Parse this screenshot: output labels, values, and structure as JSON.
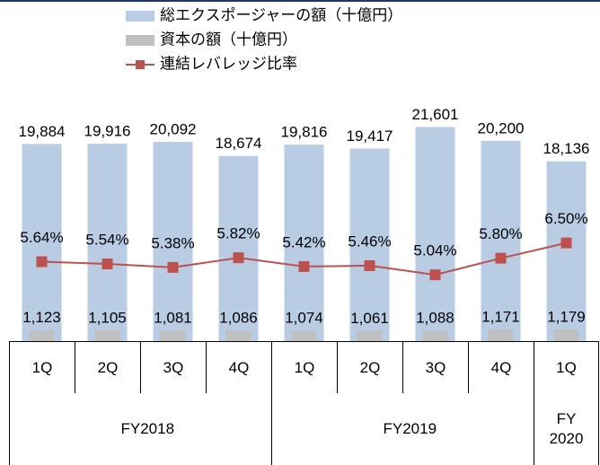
{
  "chart_data": {
    "type": "bar",
    "categories": [
      "1Q",
      "2Q",
      "3Q",
      "4Q",
      "1Q",
      "2Q",
      "3Q",
      "4Q",
      "1Q"
    ],
    "groups": [
      {
        "label": "FY2018",
        "size": 4
      },
      {
        "label": "FY2019",
        "size": 4
      },
      {
        "label": "FY 2020",
        "size": 1
      }
    ],
    "series": [
      {
        "name": "総エクスポージャーの額（十億円）",
        "color": "#b8cce4",
        "type": "bar",
        "values": [
          19884,
          19916,
          20092,
          18674,
          19816,
          19417,
          21601,
          20200,
          18136
        ],
        "value_labels": [
          "19,884",
          "19,916",
          "20,092",
          "18,674",
          "19,816",
          "19,417",
          "21,601",
          "20,200",
          "18,136"
        ]
      },
      {
        "name": "資本の額（十億円）",
        "color": "#c0c0c0",
        "type": "bar",
        "values": [
          1123,
          1105,
          1081,
          1086,
          1074,
          1061,
          1088,
          1171,
          1179
        ],
        "value_labels": [
          "1,123",
          "1,105",
          "1,081",
          "1,086",
          "1,074",
          "1,061",
          "1,088",
          "1,171",
          "1,179"
        ]
      },
      {
        "name": "連結レバレッジ比率",
        "color": "#c0504d",
        "type": "line",
        "axis": "y2",
        "values": [
          5.64,
          5.54,
          5.38,
          5.82,
          5.42,
          5.46,
          5.04,
          5.8,
          6.5
        ],
        "value_labels": [
          "5.64%",
          "5.54%",
          "5.38%",
          "5.82%",
          "5.42%",
          "5.46%",
          "5.04%",
          "5.80%",
          "6.50%"
        ]
      }
    ],
    "ylim": [
      0,
      22000
    ],
    "y2lim": [
      2,
      12
    ],
    "legend": "top"
  }
}
